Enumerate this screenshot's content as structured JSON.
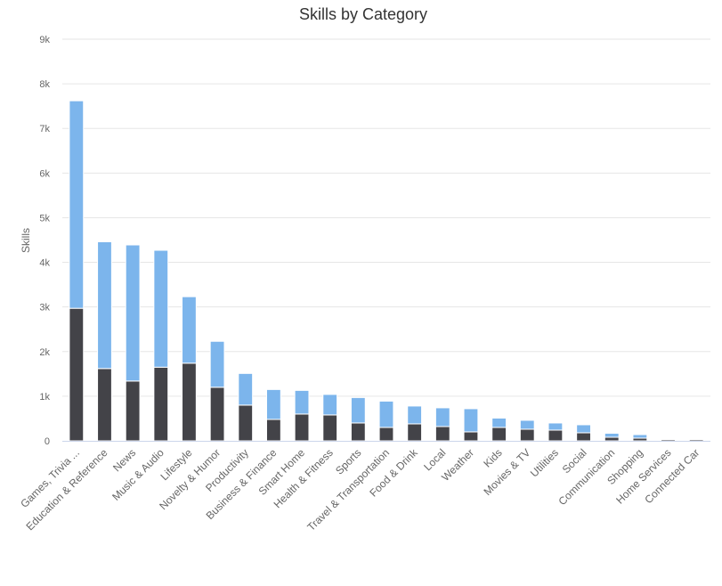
{
  "chart_data": {
    "type": "bar",
    "stacked": true,
    "title": "Skills by Category",
    "xlabel": "",
    "ylabel": "Skills",
    "ylim": [
      0,
      9000
    ],
    "yticks": [
      {
        "value": 0,
        "label": "0"
      },
      {
        "value": 1000,
        "label": "1k"
      },
      {
        "value": 2000,
        "label": "2k"
      },
      {
        "value": 3000,
        "label": "3k"
      },
      {
        "value": 4000,
        "label": "4k"
      },
      {
        "value": 5000,
        "label": "5k"
      },
      {
        "value": 6000,
        "label": "6k"
      },
      {
        "value": 7000,
        "label": "7k"
      },
      {
        "value": 8000,
        "label": "8k"
      },
      {
        "value": 9000,
        "label": "9k"
      }
    ],
    "grid": true,
    "legend": "none",
    "categories": [
      "Games, Trivia ...",
      "Education & Reference",
      "News",
      "Music & Audio",
      "Lifestyle",
      "Novelty & Humor",
      "Productivity",
      "Business & Finance",
      "Smart Home",
      "Health & Fitness",
      "Sports",
      "Travel & Transportation",
      "Food & Drink",
      "Local",
      "Weather",
      "Kids",
      "Movies & TV",
      "Utilities",
      "Social",
      "Communication",
      "Shopping",
      "Home Services",
      "Connected Car"
    ],
    "series": [
      {
        "color": "#434348",
        "values": [
          2970,
          1620,
          1340,
          1650,
          1740,
          1200,
          800,
          480,
          600,
          580,
          400,
          300,
          380,
          320,
          200,
          300,
          260,
          240,
          180,
          80,
          60,
          30,
          30
        ]
      },
      {
        "color": "#7cb5ec",
        "values": [
          4650,
          2840,
          3050,
          2620,
          1490,
          1030,
          710,
          670,
          530,
          460,
          570,
          590,
          400,
          420,
          520,
          210,
          200,
          160,
          180,
          90,
          80,
          10,
          10
        ]
      }
    ]
  }
}
